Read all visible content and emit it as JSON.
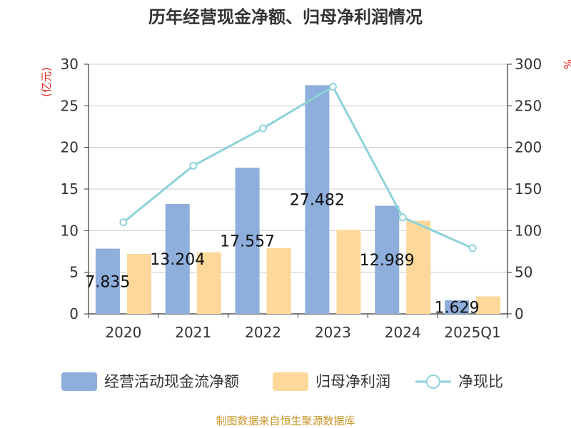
{
  "title": "历年经营现金净额、归母净利润情况",
  "source": "制图数据来自恒生聚源数据库",
  "chart_data": {
    "type": "bar+line",
    "categories": [
      "2020",
      "2021",
      "2022",
      "2023",
      "2024",
      "2025Q1"
    ],
    "series": [
      {
        "name": "经营活动现金流净额",
        "type": "bar",
        "axis": "left",
        "color": "#8eaedb",
        "values": [
          7.835,
          13.204,
          17.557,
          27.482,
          12.989,
          1.629
        ],
        "labels": [
          "7.835",
          "13.204",
          "17.557",
          "27.482",
          "12.989",
          "1.629"
        ]
      },
      {
        "name": "归母净利润",
        "type": "bar",
        "axis": "left",
        "color": "#fdd89a",
        "values": [
          7.2,
          7.4,
          7.9,
          10.1,
          11.2,
          2.1
        ]
      },
      {
        "name": "净现比",
        "type": "line",
        "axis": "right",
        "color": "#8dd3d8",
        "values": [
          110,
          178,
          223,
          273,
          116,
          79
        ]
      }
    ],
    "y_left": {
      "unit": "(亿元)",
      "min": 0,
      "max": 30,
      "ticks": [
        0,
        5,
        10,
        15,
        20,
        25,
        30
      ]
    },
    "y_right": {
      "unit": "%",
      "min": 0,
      "max": 300,
      "ticks": [
        0,
        50,
        100,
        150,
        200,
        250,
        300
      ]
    },
    "grid": true,
    "legend": "bottom"
  }
}
